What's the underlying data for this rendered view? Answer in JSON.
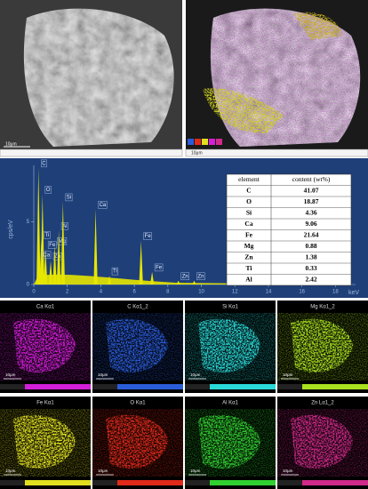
{
  "sem": {
    "scale_bar": "10μm"
  },
  "spectrum": {
    "type": "line",
    "ylabel": "cps/eV",
    "xlabel": "keV",
    "color": "#e6e600",
    "xlim": [
      0,
      19.2
    ],
    "ylim": [
      0,
      9.5
    ],
    "xticks": [
      0,
      2,
      4,
      6,
      8,
      10,
      12,
      14,
      16,
      18
    ],
    "yticks": [
      0,
      5
    ],
    "peaks": [
      {
        "label": "C",
        "x": 0.28,
        "y": 9.3
      },
      {
        "label": "O",
        "x": 0.52,
        "y": 7.2
      },
      {
        "label": "Ti",
        "x": 0.45,
        "y": 3.6
      },
      {
        "label": "Fe",
        "x": 0.7,
        "y": 2.8
      },
      {
        "label": "Ca",
        "x": 0.34,
        "y": 2.0
      },
      {
        "label": "Zn",
        "x": 1.01,
        "y": 1.9
      },
      {
        "label": "Mg",
        "x": 1.25,
        "y": 3.1
      },
      {
        "label": "Al",
        "x": 1.49,
        "y": 4.3
      },
      {
        "label": "Si",
        "x": 1.74,
        "y": 6.6
      },
      {
        "label": "Ca",
        "x": 3.69,
        "y": 6.0
      },
      {
        "label": "Ti",
        "x": 4.51,
        "y": 0.7
      },
      {
        "label": "Fe",
        "x": 6.4,
        "y": 3.5
      },
      {
        "label": "Fe",
        "x": 7.06,
        "y": 1.0
      },
      {
        "label": "Zn",
        "x": 8.63,
        "y": 0.3
      },
      {
        "label": "Zn",
        "x": 9.57,
        "y": 0.3
      }
    ]
  },
  "table": {
    "header": [
      "element",
      "content (wt%)"
    ],
    "rows": [
      [
        "C",
        41.07
      ],
      [
        "O",
        18.87
      ],
      [
        "Si",
        4.36
      ],
      [
        "Ca",
        9.06
      ],
      [
        "Fe",
        21.64
      ],
      [
        "Mg",
        0.88
      ],
      [
        "Zn",
        1.38
      ],
      [
        "Ti",
        0.33
      ],
      [
        "Al",
        2.42
      ]
    ]
  },
  "maps": [
    {
      "label": "Ca Kα1",
      "color": "#d21fd8"
    },
    {
      "label": "C Kα1_2",
      "color": "#2a5cd8"
    },
    {
      "label": "Si Kα1",
      "color": "#2ad8d8"
    },
    {
      "label": "Mg Kα1_2",
      "color": "#a8e020"
    },
    {
      "label": "Fe Kα1",
      "color": "#e0e020"
    },
    {
      "label": "O Kα1",
      "color": "#e02a1a"
    },
    {
      "label": "Al Kα1",
      "color": "#30d030"
    },
    {
      "label": "Zn Lα1_2",
      "color": "#d02a8a"
    }
  ]
}
